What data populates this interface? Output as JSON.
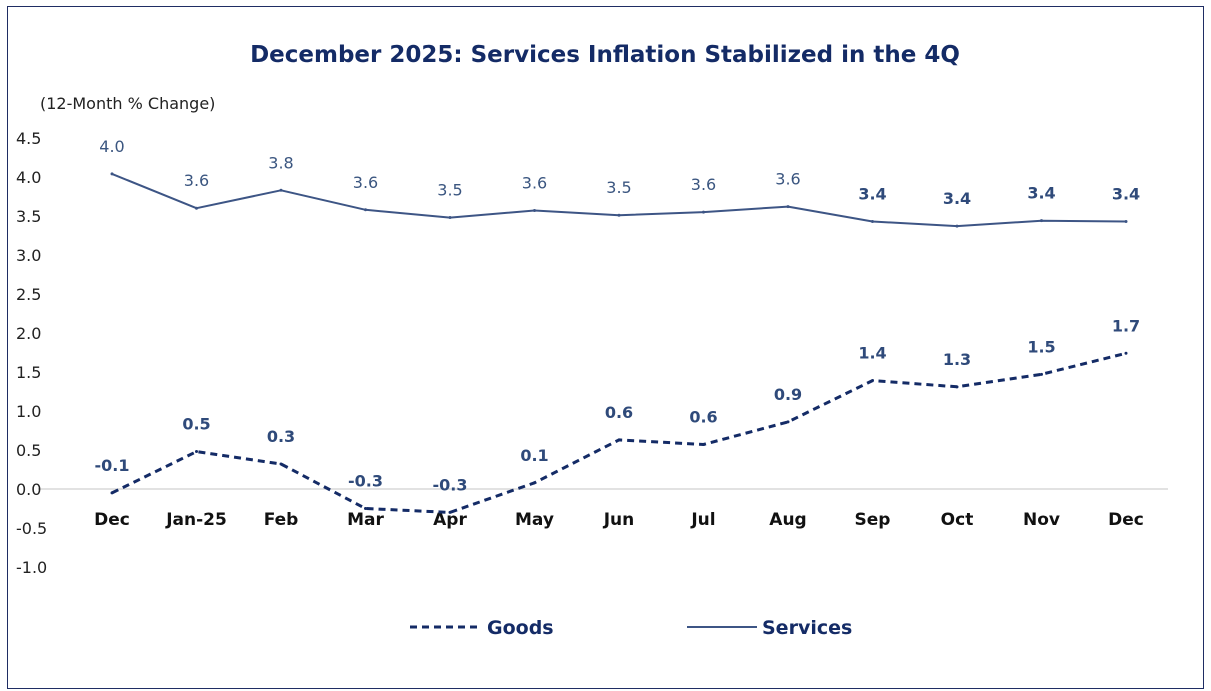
{
  "chart_data": {
    "type": "line",
    "title": "December 2025: Services Inflation Stabilized in the  4Q",
    "units_label": "(12-Month % Change)",
    "categories": [
      "Dec",
      "Jan-25",
      "Feb",
      "Mar",
      "Apr",
      "May",
      "Jun",
      "Jul",
      "Aug",
      "Sep",
      "Oct",
      "Nov",
      "Dec"
    ],
    "y_ticks": [
      "4.5",
      "4.0",
      "3.5",
      "3.0",
      "2.5",
      "2.0",
      "1.5",
      "1.0",
      "0.5",
      "0.0",
      "-0.5",
      "-1.0"
    ],
    "ylim": [
      -1.0,
      4.5
    ],
    "grid": false,
    "legend_position": "bottom",
    "series": [
      {
        "name": "Goods",
        "color": "#142b66",
        "style": "dashed",
        "values": [
          -0.05,
          0.48,
          0.32,
          -0.25,
          -0.3,
          0.08,
          0.63,
          0.57,
          0.86,
          1.39,
          1.31,
          1.47,
          1.74
        ],
        "labels": [
          "-0.1",
          "0.5",
          "0.3",
          "-0.3",
          "-0.3",
          "0.1",
          "0.6",
          "0.6",
          "0.9",
          "1.4",
          "1.3",
          "1.5",
          "1.7"
        ]
      },
      {
        "name": "Services",
        "color": "#3d5585",
        "style": "solid",
        "values": [
          4.04,
          3.6,
          3.83,
          3.58,
          3.48,
          3.57,
          3.51,
          3.55,
          3.62,
          3.43,
          3.37,
          3.44,
          3.43
        ],
        "labels": [
          "4.0",
          "3.6",
          "3.8",
          "3.6",
          "3.5",
          "3.6",
          "3.5",
          "3.6",
          "3.6",
          "3.4",
          "3.4",
          "3.4",
          "3.4"
        ],
        "bold_from_index": 9
      }
    ]
  }
}
